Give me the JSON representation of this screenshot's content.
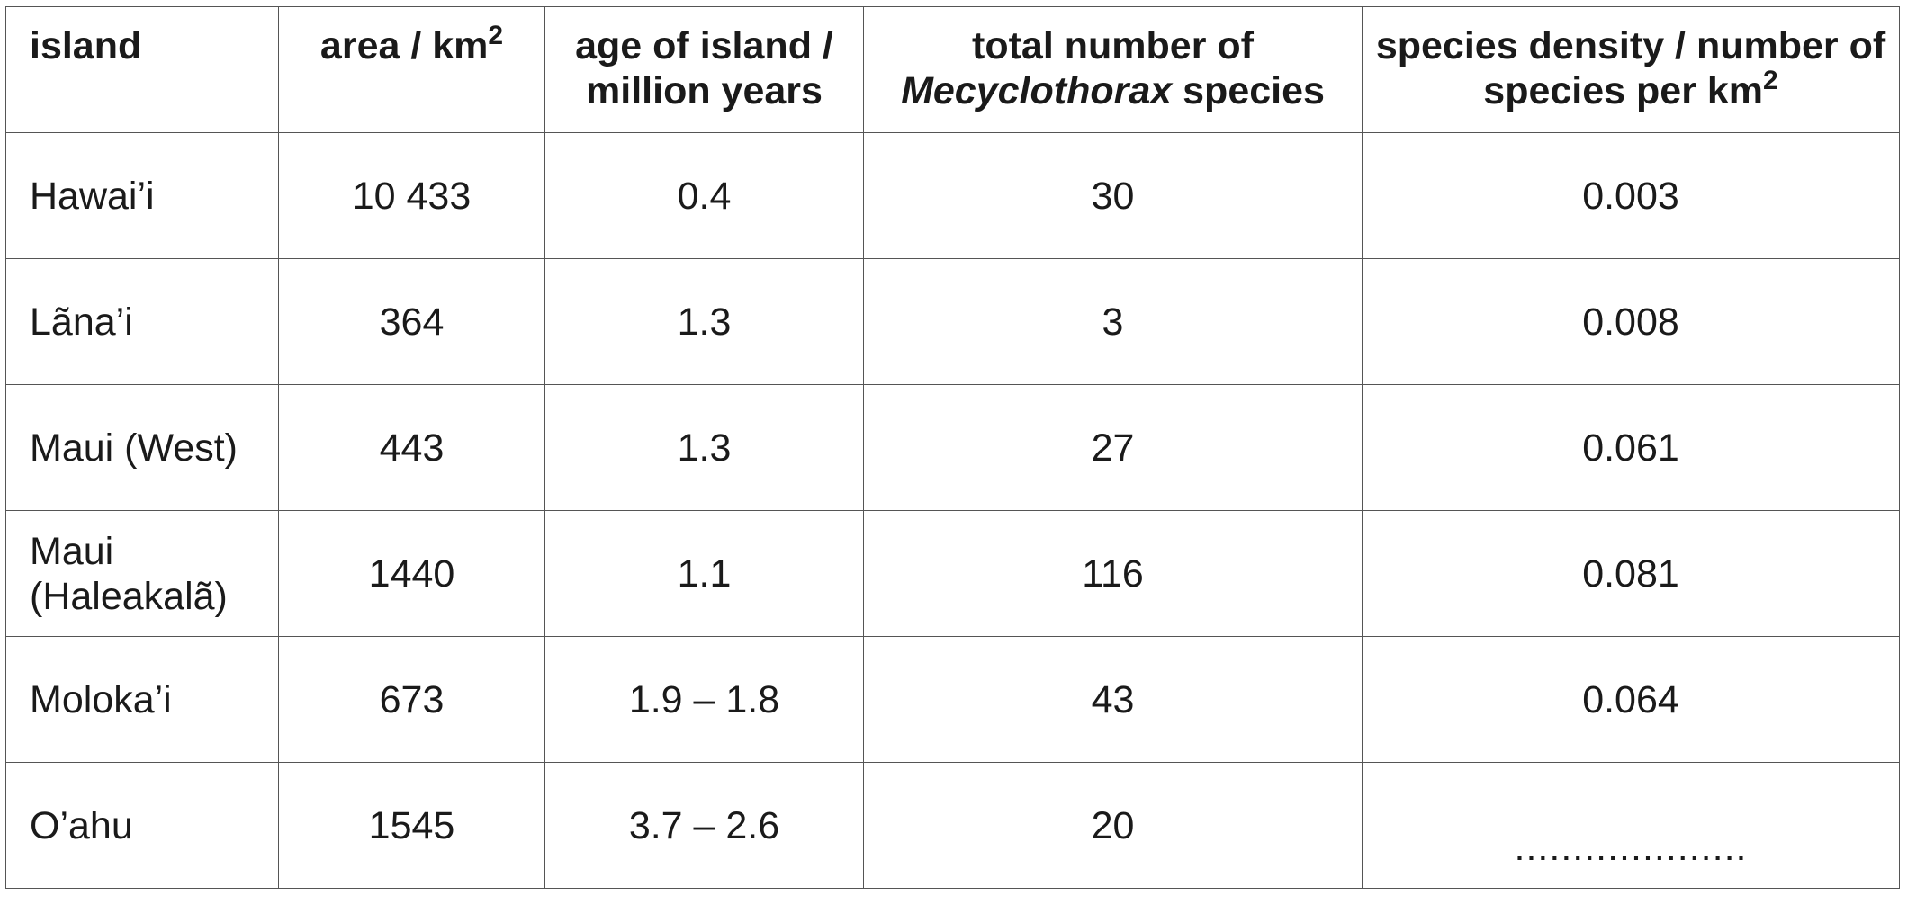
{
  "table": {
    "header": [
      [
        "island"
      ],
      [
        "area / km",
        "2"
      ],
      [
        "age of island / million years"
      ],
      [
        "total number of ",
        "Mecyclothorax",
        " species"
      ],
      [
        "species density / number of species per km",
        "2"
      ]
    ],
    "rows": [
      [
        "Hawai’i",
        "10 433",
        "0.4",
        "30",
        "0.003"
      ],
      [
        "Lãna’i",
        "364",
        "1.3",
        "3",
        "0.008"
      ],
      [
        "Maui (West)",
        "443",
        "1.3",
        "27",
        "0.061"
      ],
      [
        "Maui (Haleakalã)",
        "1440",
        "1.1",
        "116",
        "0.081"
      ],
      [
        "Moloka’i",
        "673",
        "1.9 – 1.8",
        "43",
        "0.064"
      ],
      [
        "O’ahu",
        "1545",
        "3.7 – 2.6",
        "20",
        "...................."
      ]
    ]
  }
}
